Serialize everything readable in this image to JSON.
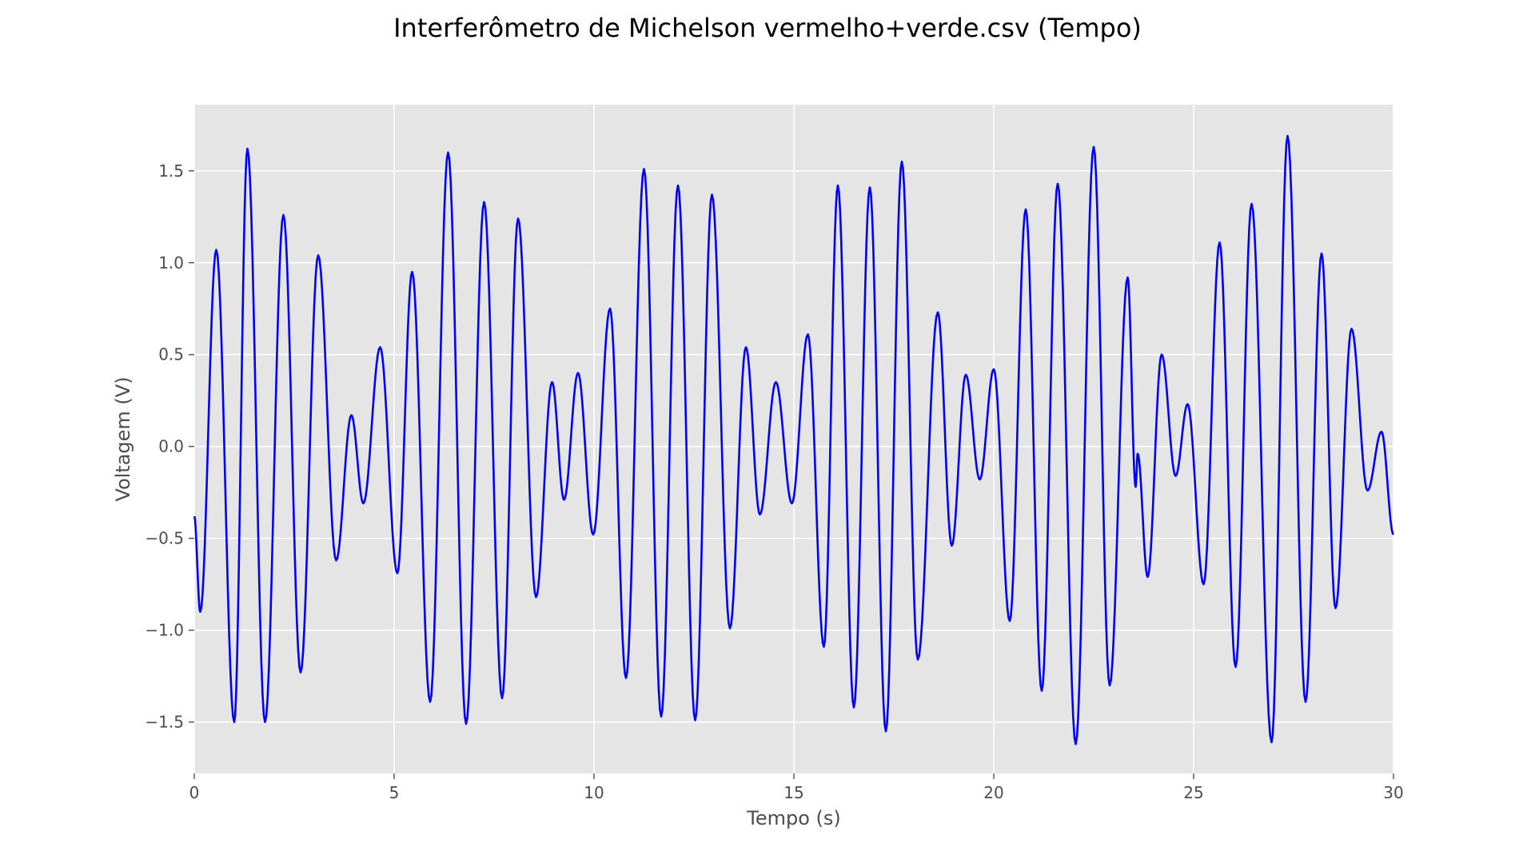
{
  "chart_data": {
    "type": "line",
    "title": "Interferômetro de Michelson vermelho+verde.csv (Tempo)",
    "xlabel": "Tempo (s)",
    "ylabel": "Voltagem (V)",
    "xlim": [
      0,
      30
    ],
    "ylim": [
      -1.78,
      1.86
    ],
    "grid": true,
    "style": "ggplot",
    "background": "#e5e5e5",
    "grid_color": "#ffffff",
    "x_ticks": [
      0,
      5,
      10,
      15,
      20,
      25,
      30
    ],
    "x_tick_labels": [
      "0",
      "5",
      "10",
      "15",
      "20",
      "25",
      "30"
    ],
    "y_ticks": [
      -1.5,
      -1.0,
      -0.5,
      0.0,
      0.5,
      1.0,
      1.5
    ],
    "y_tick_labels": [
      "−1.5",
      "−1.0",
      "−0.5",
      "0.0",
      "0.5",
      "1.0",
      "1.5"
    ],
    "series": [
      {
        "color": "#0000ff",
        "extrema": [
          [
            0.0,
            -0.38
          ],
          [
            0.15,
            -0.9
          ],
          [
            0.55,
            1.07
          ],
          [
            1.0,
            -1.5
          ],
          [
            1.33,
            1.62
          ],
          [
            1.77,
            -1.5
          ],
          [
            2.23,
            1.26
          ],
          [
            2.66,
            -1.23
          ],
          [
            3.1,
            1.04
          ],
          [
            3.55,
            -0.62
          ],
          [
            3.93,
            0.17
          ],
          [
            4.23,
            -0.31
          ],
          [
            4.65,
            0.54
          ],
          [
            5.08,
            -0.69
          ],
          [
            5.45,
            0.95
          ],
          [
            5.9,
            -1.39
          ],
          [
            6.35,
            1.6
          ],
          [
            6.8,
            -1.51
          ],
          [
            7.25,
            1.33
          ],
          [
            7.7,
            -1.37
          ],
          [
            8.1,
            1.24
          ],
          [
            8.55,
            -0.82
          ],
          [
            8.95,
            0.35
          ],
          [
            9.25,
            -0.29
          ],
          [
            9.6,
            0.4
          ],
          [
            9.98,
            -0.48
          ],
          [
            10.4,
            0.75
          ],
          [
            10.8,
            -1.26
          ],
          [
            11.25,
            1.51
          ],
          [
            11.68,
            -1.47
          ],
          [
            12.1,
            1.42
          ],
          [
            12.53,
            -1.49
          ],
          [
            12.95,
            1.37
          ],
          [
            13.4,
            -0.99
          ],
          [
            13.8,
            0.54
          ],
          [
            14.15,
            -0.37
          ],
          [
            14.55,
            0.35
          ],
          [
            14.95,
            -0.31
          ],
          [
            15.35,
            0.61
          ],
          [
            15.75,
            -1.09
          ],
          [
            16.1,
            1.42
          ],
          [
            16.5,
            -1.42
          ],
          [
            16.9,
            1.41
          ],
          [
            17.3,
            -1.55
          ],
          [
            17.7,
            1.55
          ],
          [
            18.1,
            -1.16
          ],
          [
            18.6,
            0.73
          ],
          [
            18.95,
            -0.54
          ],
          [
            19.3,
            0.39
          ],
          [
            19.65,
            -0.18
          ],
          [
            20.0,
            0.42
          ],
          [
            20.4,
            -0.95
          ],
          [
            20.8,
            1.29
          ],
          [
            21.2,
            -1.33
          ],
          [
            21.6,
            1.43
          ],
          [
            22.05,
            -1.62
          ],
          [
            22.5,
            1.63
          ],
          [
            22.9,
            -1.3
          ],
          [
            23.35,
            0.92
          ],
          [
            23.55,
            -0.22
          ],
          [
            23.6,
            -0.04
          ],
          [
            23.85,
            -0.71
          ],
          [
            24.2,
            0.5
          ],
          [
            24.55,
            -0.16
          ],
          [
            24.85,
            0.23
          ],
          [
            25.25,
            -0.75
          ],
          [
            25.65,
            1.11
          ],
          [
            26.05,
            -1.2
          ],
          [
            26.45,
            1.32
          ],
          [
            26.95,
            -1.61
          ],
          [
            27.35,
            1.69
          ],
          [
            27.8,
            -1.39
          ],
          [
            28.2,
            1.05
          ],
          [
            28.55,
            -0.88
          ],
          [
            28.95,
            0.64
          ],
          [
            29.35,
            -0.24
          ],
          [
            29.7,
            0.08
          ],
          [
            30.0,
            -0.48
          ]
        ]
      }
    ]
  }
}
